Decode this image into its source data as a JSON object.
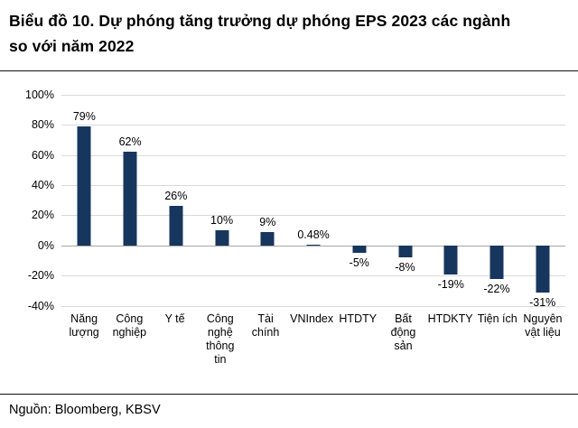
{
  "title": {
    "line1": "Biểu đồ 10. Dự phóng tăng trưởng dự phóng EPS 2023 các ngành",
    "line2": "so với năm 2022"
  },
  "source": "Nguồn: Bloomberg, KBSV",
  "colors": {
    "bar": "#17365d",
    "gridline": "#d9d9d9",
    "zero_axis": "#a6a6a6"
  },
  "chart_data": {
    "type": "bar",
    "title": "Biểu đồ 10. Dự phóng tăng trưởng dự phóng EPS 2023 các ngành so với năm 2022",
    "categories": [
      "Năng lượng",
      "Công nghiệp",
      "Y tế",
      "Công nghệ thông tin",
      "Tài chính",
      "VNIndex",
      "HTDTY",
      "Bất động sản",
      "HTDKTY",
      "Tiện ích",
      "Nguyên vật liệu"
    ],
    "values": [
      79,
      62,
      26,
      10,
      9,
      0.48,
      -5,
      -8,
      -19,
      -22,
      -31
    ],
    "value_labels": [
      "79%",
      "62%",
      "26%",
      "10%",
      "9%",
      "0.48%",
      "-5%",
      "-8%",
      "-19%",
      "-22%",
      "-31%"
    ],
    "xlabel": "",
    "ylabel": "",
    "ylim": [
      -40,
      100
    ],
    "ytick_step": 20,
    "ytick_labels": [
      "100%",
      "80%",
      "60%",
      "40%",
      "20%",
      "0%",
      "-20%",
      "-40%"
    ],
    "grid": true,
    "legend": false
  }
}
